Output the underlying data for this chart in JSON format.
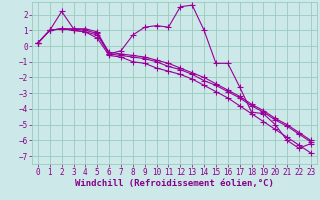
{
  "title": "",
  "xlabel": "Windchill (Refroidissement éolien,°C)",
  "ylabel": "",
  "bg_color": "#cce8e8",
  "grid_color": "#99ccbb",
  "line_color": "#990099",
  "xlim": [
    -0.5,
    23.5
  ],
  "ylim": [
    -7.5,
    2.8
  ],
  "xticks": [
    0,
    1,
    2,
    3,
    4,
    5,
    6,
    7,
    8,
    9,
    10,
    11,
    12,
    13,
    14,
    15,
    16,
    17,
    18,
    19,
    20,
    21,
    22,
    23
  ],
  "yticks": [
    -7,
    -6,
    -5,
    -4,
    -3,
    -2,
    -1,
    0,
    1,
    2
  ],
  "series": [
    [
      0.2,
      1.0,
      2.2,
      1.1,
      1.1,
      0.9,
      -0.5,
      -0.3,
      0.7,
      1.2,
      1.3,
      1.2,
      2.5,
      2.6,
      1.0,
      -1.1,
      -1.1,
      -2.6,
      -4.2,
      -4.3,
      -5.0,
      -6.0,
      -6.5,
      -6.2
    ],
    [
      0.2,
      1.0,
      1.1,
      1.1,
      1.0,
      0.8,
      -0.4,
      -0.5,
      -0.6,
      -0.7,
      -0.9,
      -1.1,
      -1.4,
      -1.7,
      -2.0,
      -2.4,
      -2.8,
      -3.2,
      -3.7,
      -4.1,
      -4.6,
      -5.0,
      -5.5,
      -6.0
    ],
    [
      0.2,
      1.0,
      1.1,
      1.0,
      0.9,
      0.7,
      -0.5,
      -0.6,
      -0.7,
      -0.8,
      -1.0,
      -1.3,
      -1.5,
      -1.8,
      -2.2,
      -2.5,
      -2.9,
      -3.3,
      -3.8,
      -4.2,
      -4.7,
      -5.1,
      -5.6,
      -6.1
    ],
    [
      0.2,
      1.0,
      1.1,
      1.0,
      0.9,
      0.5,
      -0.6,
      -0.7,
      -1.0,
      -1.1,
      -1.4,
      -1.6,
      -1.8,
      -2.1,
      -2.5,
      -2.9,
      -3.3,
      -3.8,
      -4.3,
      -4.8,
      -5.3,
      -5.8,
      -6.3,
      -6.8
    ]
  ],
  "marker": "+",
  "markersize": 4,
  "linewidth": 0.8,
  "font_color": "#880088",
  "tick_fontsize": 5.5,
  "xlabel_fontsize": 6.5
}
